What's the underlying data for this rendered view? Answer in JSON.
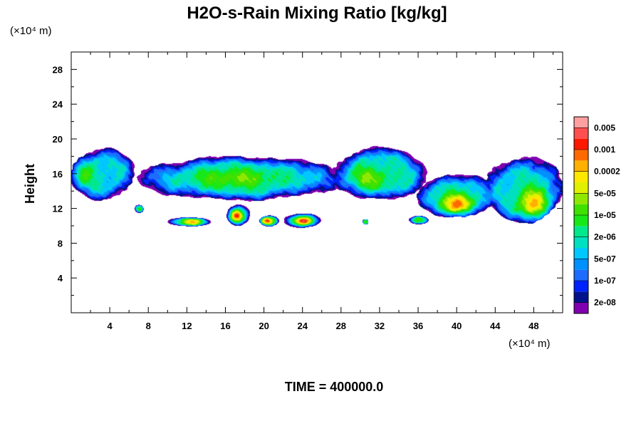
{
  "chart_data": {
    "type": "contour",
    "title": "H2O-s-Rain Mixing Ratio [kg/kg]",
    "xlabel": "",
    "ylabel": "Height",
    "x_unit": "(×10⁴ m)",
    "y_unit": "(×10⁴ m)",
    "xlim": [
      0,
      51
    ],
    "ylim": [
      0,
      30
    ],
    "x_ticks": [
      4,
      8,
      12,
      16,
      20,
      24,
      28,
      32,
      36,
      40,
      44,
      48
    ],
    "y_ticks": [
      4,
      8,
      12,
      16,
      20,
      24,
      28
    ],
    "footer": "TIME = 400000.0",
    "colorbar": {
      "levels": [
        "2e-08",
        "1e-07",
        "5e-07",
        "2e-06",
        "1e-05",
        "5e-05",
        "0.0002",
        "0.001",
        "0.005"
      ],
      "colors": [
        "#8000b0",
        "#00138c",
        "#0022ff",
        "#1e6bff",
        "#0090ff",
        "#00c8ff",
        "#00e0c0",
        "#00e88a",
        "#18e818",
        "#40e000",
        "#90e800",
        "#e0f000",
        "#ffe800",
        "#ffb000",
        "#ff6a00",
        "#ff1800",
        "#ff5050",
        "#ffa0a0"
      ]
    },
    "regions": [
      {
        "x": [
          0,
          6.5
        ],
        "y": [
          13,
          19
        ],
        "peak": 9,
        "center": [
          1,
          16
        ]
      },
      {
        "x": [
          7,
          28
        ],
        "y": [
          13,
          18
        ],
        "peak": 10,
        "center": [
          17,
          15.5
        ]
      },
      {
        "x": [
          27,
          37
        ],
        "y": [
          13,
          19
        ],
        "peak": 10,
        "center": [
          31,
          15.5
        ]
      },
      {
        "x": [
          36,
          44
        ],
        "y": [
          11,
          16
        ],
        "peak": 14,
        "center": [
          40,
          12.5
        ]
      },
      {
        "x": [
          43,
          51
        ],
        "y": [
          10.5,
          18
        ],
        "peak": 13,
        "center": [
          48,
          12.5
        ]
      },
      {
        "x": [
          16,
          18.5
        ],
        "y": [
          10,
          12.5
        ],
        "peak": 16,
        "center": [
          17.2,
          11.2
        ]
      },
      {
        "x": [
          22,
          26
        ],
        "y": [
          9.8,
          11.5
        ],
        "peak": 16,
        "center": [
          24,
          10.6
        ]
      },
      {
        "x": [
          19.5,
          21.5
        ],
        "y": [
          10,
          11.2
        ],
        "peak": 15,
        "center": [
          20.3,
          10.6
        ]
      },
      {
        "x": [
          10,
          14.5
        ],
        "y": [
          10,
          11
        ],
        "peak": 13,
        "center": [
          12.5,
          10.5
        ]
      },
      {
        "x": [
          6.5,
          7.5
        ],
        "y": [
          11.5,
          12.5
        ],
        "peak": 8,
        "center": [
          7,
          12
        ]
      },
      {
        "x": [
          30.2,
          30.8
        ],
        "y": [
          10.2,
          10.8
        ],
        "peak": 9,
        "center": [
          30.5,
          10.5
        ]
      },
      {
        "x": [
          35,
          37
        ],
        "y": [
          10.2,
          11.2
        ],
        "peak": 9,
        "center": [
          36,
          10.7
        ]
      }
    ]
  }
}
